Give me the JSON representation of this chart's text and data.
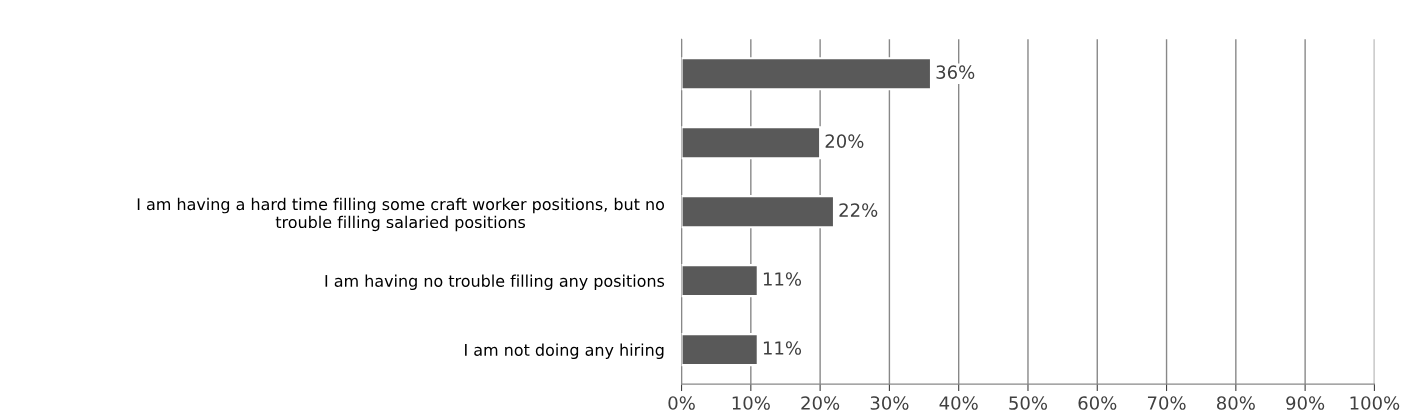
{
  "chart_data": {
    "type": "bar",
    "orientation": "horizontal",
    "categories": [
      null,
      null,
      "I am having a hard time filling some craft worker positions, but no\ntrouble filling salaried positions",
      "I am having no trouble filling any positions",
      "I am not doing any hiring"
    ],
    "values": [
      36,
      20,
      22,
      11,
      11
    ],
    "value_labels": [
      "36%",
      "20%",
      "22%",
      "11%",
      "11%"
    ],
    "color": "#595959",
    "xlim": [
      0,
      100
    ],
    "xticks": [
      {
        "value": 0,
        "label": "0%"
      },
      {
        "value": 10,
        "label": "10%"
      },
      {
        "value": 20,
        "label": "20%"
      },
      {
        "value": 30,
        "label": "30%"
      },
      {
        "value": 40,
        "label": "40%"
      },
      {
        "value": 50,
        "label": "50%"
      },
      {
        "value": 60,
        "label": "60%"
      },
      {
        "value": 70,
        "label": "70%"
      },
      {
        "value": 80,
        "label": "80%"
      },
      {
        "value": 90,
        "label": "90%"
      },
      {
        "value": 100,
        "label": "100%"
      }
    ],
    "grid": "x"
  }
}
